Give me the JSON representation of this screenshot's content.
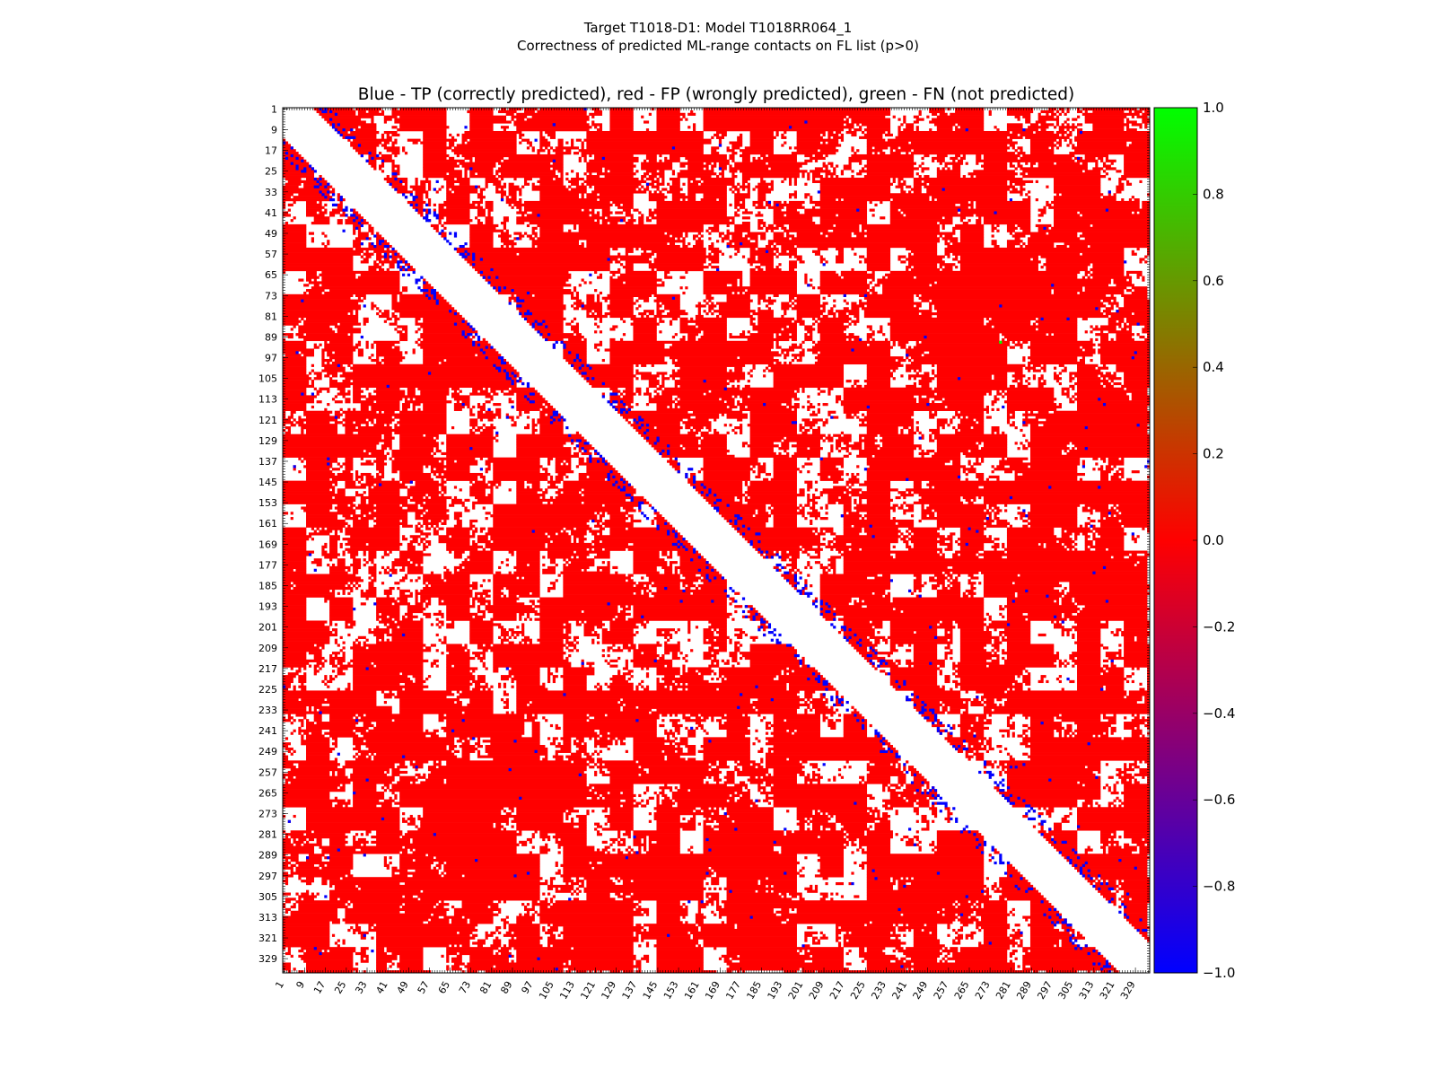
{
  "suptitle_line1": "Target T1018-D1: Model T1018RR064_1",
  "suptitle_line2": "Correctness of predicted ML-range contacts on FL list (p>0)",
  "chart_data": {
    "type": "heatmap",
    "title": "Blue - TP (correctly predicted), red - FP (wrongly predicted), green - FN (not predicted)",
    "x_tick_labels": [
      "1",
      "9",
      "17",
      "25",
      "33",
      "41",
      "49",
      "57",
      "65",
      "73",
      "81",
      "89",
      "97",
      "105",
      "113",
      "121",
      "129",
      "137",
      "145",
      "153",
      "161",
      "169",
      "177",
      "185",
      "193",
      "201",
      "209",
      "217",
      "225",
      "233",
      "241",
      "249",
      "257",
      "265",
      "273",
      "281",
      "289",
      "297",
      "305",
      "313",
      "321",
      "329"
    ],
    "y_tick_labels": [
      "1",
      "9",
      "17",
      "25",
      "33",
      "41",
      "49",
      "57",
      "65",
      "73",
      "81",
      "89",
      "97",
      "105",
      "113",
      "121",
      "129",
      "137",
      "145",
      "153",
      "161",
      "169",
      "177",
      "185",
      "193",
      "201",
      "209",
      "217",
      "225",
      "233",
      "241",
      "249",
      "257",
      "265",
      "273",
      "281",
      "289",
      "297",
      "305",
      "313",
      "321",
      "329"
    ],
    "n_residues": 334,
    "value_meaning": {
      "-1": "TP (blue)",
      "0": "FP (red)",
      "1": "FN (green)"
    },
    "colorbar": {
      "min": -1.0,
      "max": 1.0,
      "ticks": [
        "1.0",
        "0.8",
        "0.6",
        "0.4",
        "0.2",
        "0.0",
        "−0.2",
        "−0.4",
        "−0.6",
        "−0.8",
        "−1.0"
      ],
      "colors": {
        "low": "#0000ff",
        "mid": "#ff0000",
        "high": "#00ff00"
      }
    },
    "colors": {
      "tp": "#0000ff",
      "fp": "#ff0000",
      "fn": "#00ff00",
      "empty": "#ffffff"
    }
  }
}
